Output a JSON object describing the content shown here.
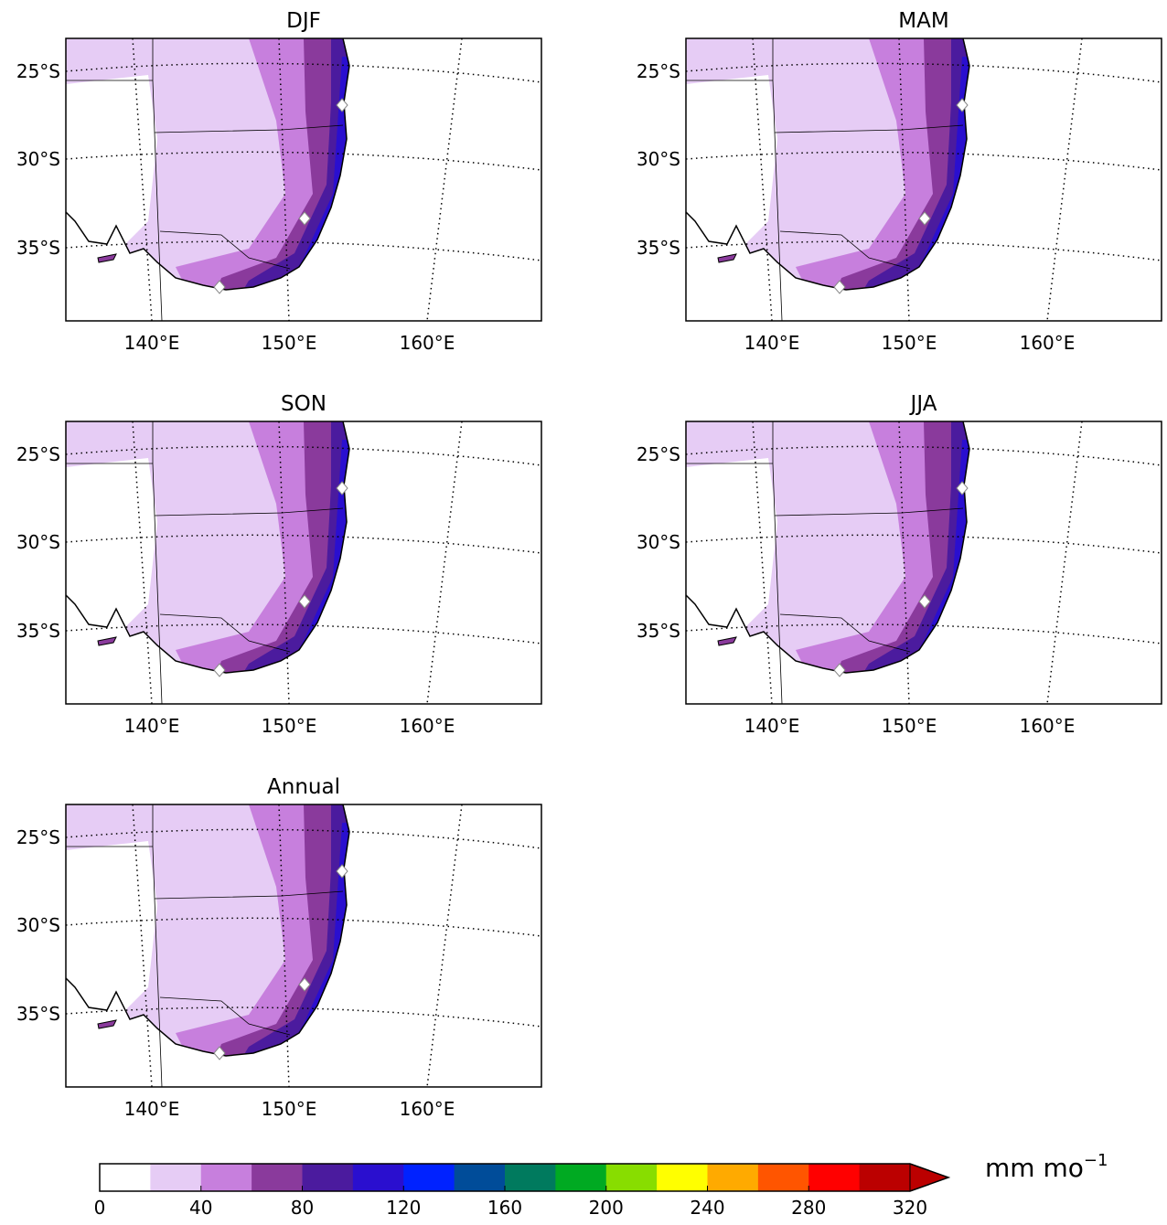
{
  "panels": [
    {
      "title": "DJF"
    },
    {
      "title": "MAM"
    },
    {
      "title": "SON"
    },
    {
      "title": "JJA"
    },
    {
      "title": "Annual"
    }
  ],
  "lat_labels": [
    "25°S",
    "30°S",
    "35°S"
  ],
  "lon_labels": [
    "140°E",
    "150°E",
    "160°E"
  ],
  "colorbar": {
    "ticks": [
      0,
      40,
      80,
      120,
      160,
      200,
      240,
      280,
      320
    ],
    "colors": [
      "#ffffff",
      "#e6ccf5",
      "#c77fdd",
      "#8a3a9c",
      "#4b1b9e",
      "#2a0fcf",
      "#0022ff",
      "#004c99",
      "#007a5e",
      "#00aa22",
      "#88dd00",
      "#ffff00",
      "#ffaa00",
      "#ff5500",
      "#ff0000",
      "#bb0000"
    ],
    "extend_color": "#bb0000",
    "unit": "mm mo",
    "unit_power": "−1"
  }
}
